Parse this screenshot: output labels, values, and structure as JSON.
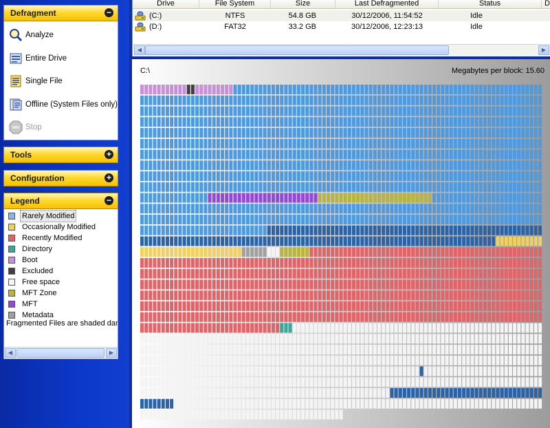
{
  "sidebar": {
    "defragment": {
      "title": "Defragment",
      "tasks": [
        {
          "label": "Analyze",
          "icon": "analyze-magnifier-icon",
          "enabled": true
        },
        {
          "label": "Entire Drive",
          "icon": "entire-drive-icon",
          "enabled": true
        },
        {
          "label": "Single File",
          "icon": "single-file-icon",
          "enabled": true
        },
        {
          "label": "Offline (System Files only)",
          "icon": "offline-system-files-icon",
          "enabled": true
        },
        {
          "label": "Stop",
          "icon": "stop-icon",
          "enabled": false
        }
      ]
    },
    "tools": {
      "title": "Tools"
    },
    "configuration": {
      "title": "Configuration"
    },
    "legend": {
      "title": "Legend",
      "items": [
        {
          "label": "Rarely Modified",
          "color": "#8cb4e6"
        },
        {
          "label": "Occasionally Modified",
          "color": "#f0d060"
        },
        {
          "label": "Recently Modified",
          "color": "#e06468"
        },
        {
          "label": "Directory",
          "color": "#3aa89c"
        },
        {
          "label": "Boot",
          "color": "#c890d8"
        },
        {
          "label": "Excluded",
          "color": "#404040"
        },
        {
          "label": "Free space",
          "color": "#f4f4f4"
        },
        {
          "label": "MFT Zone",
          "color": "#b8b440"
        },
        {
          "label": "MFT",
          "color": "#9448d8"
        },
        {
          "label": "Metadata",
          "color": "#a0a0a0"
        }
      ],
      "note": "Fragmented Files are shaded darke"
    }
  },
  "drive_list": {
    "columns": [
      "Drive",
      "File System",
      "Size",
      "Last Defragmented",
      "Status",
      "De"
    ],
    "rows": [
      {
        "drive": "(C:)",
        "fs": "NTFS",
        "size": "54.8 GB",
        "last": "30/12/2006, 11:54:52",
        "status": "Idle"
      },
      {
        "drive": "(D:)",
        "fs": "FAT32",
        "size": "33.2 GB",
        "last": "30/12/2006, 12:23:13",
        "status": "Idle"
      }
    ]
  },
  "map": {
    "drive": "C:\\",
    "megabytes_per_block": "Megabytes per block: 15.60"
  },
  "colors": {
    "rarely": "#4e9ae0",
    "occasionally": "#f0d060",
    "recently": "#e06468",
    "directory": "#3aa89c",
    "boot": "#c890d8",
    "excluded": "#404040",
    "free": "#f4f4f4",
    "mftzone": "#b8b440",
    "mft": "#9448d8",
    "metadata": "#a0a0a0",
    "fragmented": "#2b63a8"
  }
}
